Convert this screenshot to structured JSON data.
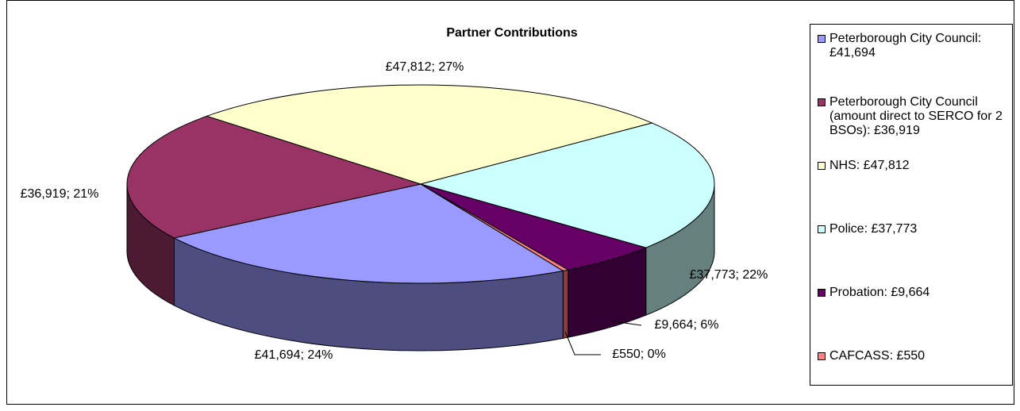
{
  "chart_data": {
    "type": "pie3d",
    "title": "Partner Contributions",
    "categories": [
      "Peterborough City Council: £41,694",
      "Peterborough City Council (amount direct to SERCO for 2 BSOs): £36,919",
      "NHS: £47,812",
      "Police: £37,773",
      "Probation: £9,664",
      "CAFCASS: £550"
    ],
    "values": [
      41694,
      36919,
      47812,
      37773,
      9664,
      550
    ],
    "value_labels": [
      "£41,694; 24%",
      "£36,919; 21%",
      "£47,812; 27%",
      "£37,773; 22%",
      "£9,664; 6%",
      "£550; 0%"
    ],
    "colors": [
      "#9999ff",
      "#993366",
      "#ffffcc",
      "#ccffff",
      "#660066",
      "#ff8080"
    ],
    "legend": "right"
  }
}
